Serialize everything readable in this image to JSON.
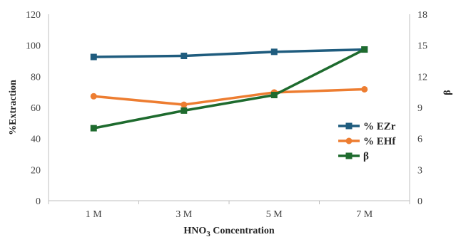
{
  "chart_data": {
    "type": "line",
    "categories": [
      "1 M",
      "3 M",
      "5 M",
      "7 M"
    ],
    "xlabel_prefix": "HNO",
    "xlabel_subscript": "3",
    "xlabel_suffix": " Concentration",
    "ylabel": "%Extraction",
    "y2label": "β",
    "ylim": [
      0,
      120
    ],
    "yticks": [
      "0",
      "20",
      "40",
      "60",
      "80",
      "100",
      "120"
    ],
    "y2lim": [
      0,
      18
    ],
    "y2ticks": [
      "0",
      "3",
      "6",
      "9",
      "12",
      "15",
      "18"
    ],
    "grid": false,
    "legend_position": "right",
    "series": [
      {
        "name": "% EZr",
        "axis": "left",
        "marker": "square",
        "color": "#1F5C7E",
        "values": [
          92.5,
          93.2,
          95.8,
          97.3
        ]
      },
      {
        "name": "% EHf",
        "axis": "left",
        "marker": "circle",
        "color": "#ED7D31",
        "values": [
          67.2,
          61.8,
          69.7,
          71.7
        ]
      },
      {
        "name": "β",
        "axis": "right",
        "marker": "square",
        "color": "#1E6B2E",
        "values": [
          7.0,
          8.7,
          10.2,
          14.6
        ]
      }
    ]
  }
}
